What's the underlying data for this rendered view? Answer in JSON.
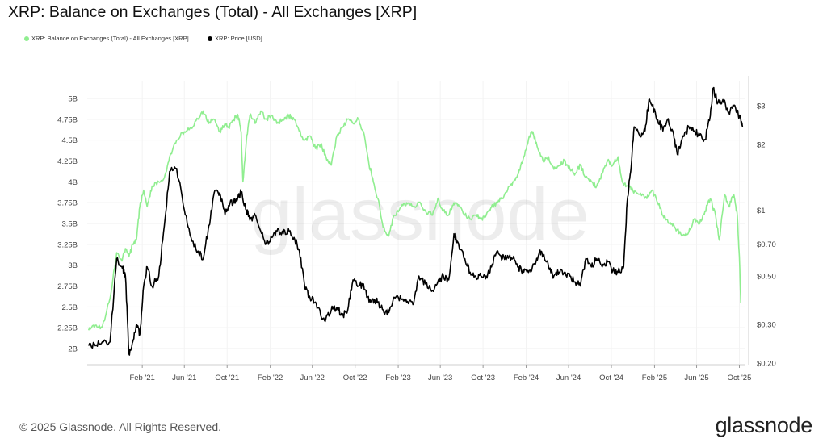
{
  "chart_data": {
    "type": "line",
    "title": "XRP: Balance on Exchanges (Total) - All Exchanges [XRP]",
    "watermark": "glassnode",
    "legend": {
      "placement": "top-left"
    },
    "grid": true,
    "x_ticks": [
      "Feb '21",
      "Jun '21",
      "Oct '21",
      "Feb '22",
      "Jun '22",
      "Oct '22",
      "Feb '23",
      "Jun '23",
      "Oct '23",
      "Feb '24",
      "Jun '24",
      "Oct '24",
      "Feb '25",
      "Jun '25",
      "Oct '25"
    ],
    "y_left": {
      "range": [
        1.9,
        5.15
      ],
      "ticks": [
        2,
        2.25,
        2.5,
        2.75,
        3,
        3.25,
        3.5,
        3.75,
        4,
        4.25,
        4.5,
        4.75,
        5
      ],
      "tick_labels": [
        "2B",
        "2.25B",
        "2.5B",
        "2.75B",
        "3B",
        "3.25B",
        "3.5B",
        "3.75B",
        "4B",
        "4.25B",
        "4.5B",
        "4.75B",
        "5B"
      ]
    },
    "y_right": {
      "scale": "log",
      "range": [
        0.2,
        3.5
      ],
      "ticks": [
        0.2,
        0.3,
        0.5,
        0.7,
        1,
        2,
        3
      ],
      "tick_labels": [
        "$0.20",
        "$0.30",
        "$0.50",
        "$0.70",
        "$1",
        "$2",
        "$3"
      ]
    },
    "series": [
      {
        "name": "XRP: Balance on Exchanges (Total) - All Exchanges [XRP]",
        "axis": "left",
        "color": "#90ee90",
        "points": [
          [
            "2020-09-01",
            2.22
          ],
          [
            "2020-09-20",
            2.28
          ],
          [
            "2020-10-10",
            2.26
          ],
          [
            "2020-11-01",
            2.6
          ],
          [
            "2020-11-20",
            3.15
          ],
          [
            "2020-12-05",
            3.05
          ],
          [
            "2020-12-15",
            3.2
          ],
          [
            "2020-12-25",
            3.1
          ],
          [
            "2021-01-05",
            3.25
          ],
          [
            "2021-01-15",
            3.3
          ],
          [
            "2021-01-25",
            3.7
          ],
          [
            "2021-02-05",
            3.9
          ],
          [
            "2021-02-15",
            3.7
          ],
          [
            "2021-03-01",
            3.95
          ],
          [
            "2021-03-20",
            4.0
          ],
          [
            "2021-04-05",
            4.05
          ],
          [
            "2021-04-20",
            4.3
          ],
          [
            "2021-05-10",
            4.5
          ],
          [
            "2021-06-01",
            4.6
          ],
          [
            "2021-06-20",
            4.65
          ],
          [
            "2021-07-10",
            4.75
          ],
          [
            "2021-07-25",
            4.85
          ],
          [
            "2021-08-10",
            4.7
          ],
          [
            "2021-08-25",
            4.75
          ],
          [
            "2021-09-10",
            4.6
          ],
          [
            "2021-09-25",
            4.7
          ],
          [
            "2021-10-05",
            4.65
          ],
          [
            "2021-10-20",
            4.75
          ],
          [
            "2021-11-01",
            4.8
          ],
          [
            "2021-11-10",
            4.6
          ],
          [
            "2021-11-15",
            4.0
          ],
          [
            "2021-11-25",
            4.5
          ],
          [
            "2021-12-05",
            4.8
          ],
          [
            "2021-12-20",
            4.7
          ],
          [
            "2022-01-05",
            4.85
          ],
          [
            "2022-01-20",
            4.75
          ],
          [
            "2022-02-05",
            4.8
          ],
          [
            "2022-02-20",
            4.7
          ],
          [
            "2022-03-10",
            4.75
          ],
          [
            "2022-03-25",
            4.8
          ],
          [
            "2022-04-10",
            4.75
          ],
          [
            "2022-04-25",
            4.6
          ],
          [
            "2022-05-10",
            4.5
          ],
          [
            "2022-05-25",
            4.55
          ],
          [
            "2022-06-10",
            4.4
          ],
          [
            "2022-06-25",
            4.45
          ],
          [
            "2022-07-10",
            4.3
          ],
          [
            "2022-07-25",
            4.2
          ],
          [
            "2022-08-10",
            4.55
          ],
          [
            "2022-08-25",
            4.65
          ],
          [
            "2022-09-10",
            4.75
          ],
          [
            "2022-09-25",
            4.7
          ],
          [
            "2022-10-10",
            4.75
          ],
          [
            "2022-10-25",
            4.6
          ],
          [
            "2022-11-10",
            4.2
          ],
          [
            "2022-11-20",
            4.05
          ],
          [
            "2022-12-05",
            3.8
          ],
          [
            "2022-12-20",
            3.45
          ],
          [
            "2023-01-05",
            3.35
          ],
          [
            "2023-01-20",
            3.6
          ],
          [
            "2023-02-10",
            3.7
          ],
          [
            "2023-02-25",
            3.75
          ],
          [
            "2023-03-15",
            3.7
          ],
          [
            "2023-04-01",
            3.75
          ],
          [
            "2023-04-20",
            3.65
          ],
          [
            "2023-05-10",
            3.6
          ],
          [
            "2023-05-25",
            3.8
          ],
          [
            "2023-06-10",
            3.65
          ],
          [
            "2023-06-25",
            3.6
          ],
          [
            "2023-07-10",
            3.75
          ],
          [
            "2023-07-25",
            3.7
          ],
          [
            "2023-08-10",
            3.6
          ],
          [
            "2023-08-25",
            3.55
          ],
          [
            "2023-09-10",
            3.6
          ],
          [
            "2023-09-25",
            3.55
          ],
          [
            "2023-10-10",
            3.6
          ],
          [
            "2023-10-25",
            3.7
          ],
          [
            "2023-11-10",
            3.75
          ],
          [
            "2023-11-25",
            3.8
          ],
          [
            "2023-12-10",
            3.9
          ],
          [
            "2023-12-25",
            4.0
          ],
          [
            "2024-01-10",
            4.1
          ],
          [
            "2024-01-25",
            4.3
          ],
          [
            "2024-02-10",
            4.55
          ],
          [
            "2024-02-20",
            4.6
          ],
          [
            "2024-03-05",
            4.4
          ],
          [
            "2024-03-20",
            4.25
          ],
          [
            "2024-04-05",
            4.3
          ],
          [
            "2024-04-20",
            4.15
          ],
          [
            "2024-05-05",
            4.2
          ],
          [
            "2024-05-20",
            4.25
          ],
          [
            "2024-06-05",
            4.15
          ],
          [
            "2024-06-20",
            4.1
          ],
          [
            "2024-07-05",
            4.2
          ],
          [
            "2024-07-20",
            4.05
          ],
          [
            "2024-08-05",
            4.0
          ],
          [
            "2024-08-20",
            3.95
          ],
          [
            "2024-09-05",
            4.1
          ],
          [
            "2024-09-20",
            4.25
          ],
          [
            "2024-10-05",
            4.2
          ],
          [
            "2024-10-20",
            4.3
          ],
          [
            "2024-11-01",
            4.0
          ],
          [
            "2024-11-15",
            3.95
          ],
          [
            "2024-12-01",
            3.9
          ],
          [
            "2024-12-20",
            3.85
          ],
          [
            "2025-01-10",
            3.8
          ],
          [
            "2025-01-25",
            3.9
          ],
          [
            "2025-02-10",
            3.75
          ],
          [
            "2025-02-25",
            3.6
          ],
          [
            "2025-03-15",
            3.5
          ],
          [
            "2025-04-01",
            3.45
          ],
          [
            "2025-04-20",
            3.35
          ],
          [
            "2025-05-10",
            3.4
          ],
          [
            "2025-05-25",
            3.55
          ],
          [
            "2025-06-10",
            3.5
          ],
          [
            "2025-06-25",
            3.65
          ],
          [
            "2025-07-10",
            3.8
          ],
          [
            "2025-07-25",
            3.6
          ],
          [
            "2025-08-05",
            3.3
          ],
          [
            "2025-08-20",
            3.85
          ],
          [
            "2025-09-01",
            3.7
          ],
          [
            "2025-09-15",
            3.85
          ],
          [
            "2025-09-25",
            3.6
          ],
          [
            "2025-10-01",
            3.1
          ],
          [
            "2025-10-05",
            2.55
          ]
        ]
      },
      {
        "name": "XRP: Price [USD]",
        "axis": "right",
        "color": "#000000",
        "points": [
          [
            "2020-09-01",
            0.24
          ],
          [
            "2020-09-20",
            0.24
          ],
          [
            "2020-10-10",
            0.25
          ],
          [
            "2020-11-01",
            0.25
          ],
          [
            "2020-11-20",
            0.6
          ],
          [
            "2020-12-05",
            0.55
          ],
          [
            "2020-12-15",
            0.5
          ],
          [
            "2020-12-25",
            0.22
          ],
          [
            "2021-01-05",
            0.25
          ],
          [
            "2021-01-15",
            0.3
          ],
          [
            "2021-01-25",
            0.27
          ],
          [
            "2021-02-05",
            0.45
          ],
          [
            "2021-02-15",
            0.55
          ],
          [
            "2021-03-01",
            0.45
          ],
          [
            "2021-03-20",
            0.5
          ],
          [
            "2021-04-05",
            0.85
          ],
          [
            "2021-04-20",
            1.5
          ],
          [
            "2021-05-10",
            1.55
          ],
          [
            "2021-06-01",
            1.0
          ],
          [
            "2021-06-20",
            0.75
          ],
          [
            "2021-07-10",
            0.65
          ],
          [
            "2021-07-25",
            0.6
          ],
          [
            "2021-08-10",
            0.85
          ],
          [
            "2021-08-25",
            1.2
          ],
          [
            "2021-09-10",
            1.2
          ],
          [
            "2021-09-25",
            0.95
          ],
          [
            "2021-10-05",
            1.05
          ],
          [
            "2021-10-20",
            1.1
          ],
          [
            "2021-11-01",
            1.15
          ],
          [
            "2021-11-10",
            1.2
          ],
          [
            "2021-11-25",
            1.0
          ],
          [
            "2021-12-05",
            0.9
          ],
          [
            "2021-12-20",
            0.95
          ],
          [
            "2022-01-05",
            0.8
          ],
          [
            "2022-01-20",
            0.7
          ],
          [
            "2022-02-05",
            0.75
          ],
          [
            "2022-02-20",
            0.8
          ],
          [
            "2022-03-10",
            0.78
          ],
          [
            "2022-03-25",
            0.82
          ],
          [
            "2022-04-10",
            0.75
          ],
          [
            "2022-04-25",
            0.65
          ],
          [
            "2022-05-10",
            0.45
          ],
          [
            "2022-05-25",
            0.4
          ],
          [
            "2022-06-10",
            0.38
          ],
          [
            "2022-06-25",
            0.33
          ],
          [
            "2022-07-10",
            0.32
          ],
          [
            "2022-07-25",
            0.35
          ],
          [
            "2022-08-10",
            0.36
          ],
          [
            "2022-08-25",
            0.33
          ],
          [
            "2022-09-10",
            0.35
          ],
          [
            "2022-09-25",
            0.48
          ],
          [
            "2022-10-10",
            0.45
          ],
          [
            "2022-10-25",
            0.46
          ],
          [
            "2022-11-10",
            0.38
          ],
          [
            "2022-11-25",
            0.39
          ],
          [
            "2022-12-05",
            0.38
          ],
          [
            "2022-12-20",
            0.35
          ],
          [
            "2023-01-05",
            0.34
          ],
          [
            "2023-01-20",
            0.4
          ],
          [
            "2023-02-10",
            0.39
          ],
          [
            "2023-02-25",
            0.38
          ],
          [
            "2023-03-15",
            0.37
          ],
          [
            "2023-04-01",
            0.5
          ],
          [
            "2023-04-20",
            0.46
          ],
          [
            "2023-05-10",
            0.43
          ],
          [
            "2023-05-25",
            0.47
          ],
          [
            "2023-06-10",
            0.5
          ],
          [
            "2023-06-25",
            0.48
          ],
          [
            "2023-07-10",
            0.78
          ],
          [
            "2023-07-20",
            0.72
          ],
          [
            "2023-08-10",
            0.6
          ],
          [
            "2023-08-25",
            0.52
          ],
          [
            "2023-09-10",
            0.5
          ],
          [
            "2023-09-25",
            0.5
          ],
          [
            "2023-10-10",
            0.5
          ],
          [
            "2023-10-25",
            0.55
          ],
          [
            "2023-11-10",
            0.65
          ],
          [
            "2023-11-25",
            0.6
          ],
          [
            "2023-12-10",
            0.62
          ],
          [
            "2023-12-25",
            0.6
          ],
          [
            "2024-01-10",
            0.55
          ],
          [
            "2024-01-25",
            0.52
          ],
          [
            "2024-02-10",
            0.53
          ],
          [
            "2024-02-25",
            0.57
          ],
          [
            "2024-03-10",
            0.65
          ],
          [
            "2024-03-20",
            0.62
          ],
          [
            "2024-04-05",
            0.55
          ],
          [
            "2024-04-20",
            0.5
          ],
          [
            "2024-05-05",
            0.52
          ],
          [
            "2024-05-20",
            0.52
          ],
          [
            "2024-06-05",
            0.5
          ],
          [
            "2024-06-20",
            0.47
          ],
          [
            "2024-07-05",
            0.45
          ],
          [
            "2024-07-20",
            0.6
          ],
          [
            "2024-08-05",
            0.55
          ],
          [
            "2024-08-20",
            0.6
          ],
          [
            "2024-09-05",
            0.55
          ],
          [
            "2024-09-20",
            0.58
          ],
          [
            "2024-10-05",
            0.53
          ],
          [
            "2024-10-20",
            0.52
          ],
          [
            "2024-11-05",
            0.55
          ],
          [
            "2024-11-15",
            1.1
          ],
          [
            "2024-11-25",
            1.5
          ],
          [
            "2024-12-05",
            2.4
          ],
          [
            "2024-12-20",
            2.2
          ],
          [
            "2025-01-05",
            2.3
          ],
          [
            "2025-01-16",
            3.2
          ],
          [
            "2025-01-25",
            3.0
          ],
          [
            "2025-02-10",
            2.6
          ],
          [
            "2025-02-25",
            2.3
          ],
          [
            "2025-03-10",
            2.6
          ],
          [
            "2025-03-25",
            2.3
          ],
          [
            "2025-04-07",
            1.8
          ],
          [
            "2025-04-20",
            2.1
          ],
          [
            "2025-05-10",
            2.4
          ],
          [
            "2025-05-25",
            2.3
          ],
          [
            "2025-06-10",
            2.2
          ],
          [
            "2025-06-25",
            2.1
          ],
          [
            "2025-07-10",
            2.7
          ],
          [
            "2025-07-18",
            3.6
          ],
          [
            "2025-08-01",
            3.1
          ],
          [
            "2025-08-15",
            3.2
          ],
          [
            "2025-09-01",
            2.8
          ],
          [
            "2025-09-15",
            3.0
          ],
          [
            "2025-09-25",
            2.8
          ],
          [
            "2025-10-05",
            2.6
          ],
          [
            "2025-10-10",
            2.4
          ]
        ]
      }
    ]
  },
  "legend_items": [
    {
      "label": "XRP: Balance on Exchanges (Total) - All Exchanges [XRP]",
      "color": "#90ee90"
    },
    {
      "label": "XRP: Price [USD]",
      "color": "#000000"
    }
  ],
  "footer": {
    "copyright": "© 2025 Glassnode. All Rights Reserved.",
    "brand": "glassnode"
  }
}
